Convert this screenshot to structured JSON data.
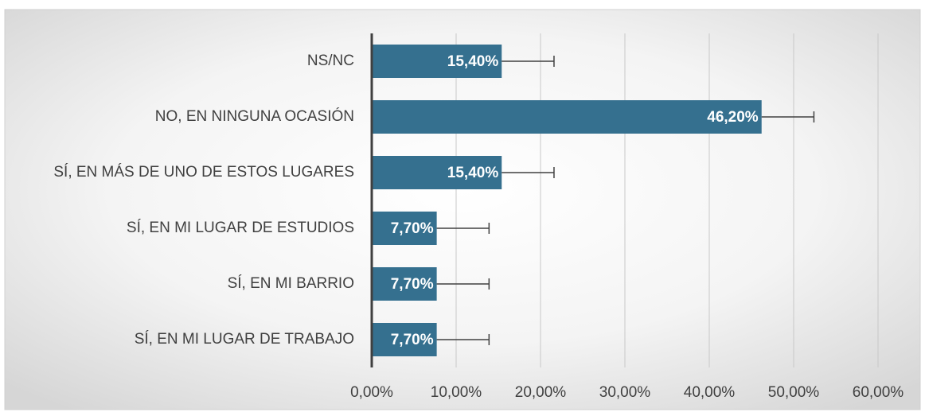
{
  "chart_data": {
    "type": "hbar",
    "categories": [
      "NS/NC",
      "NO, EN NINGUNA OCASIÓN",
      "SÍ, EN MÁS DE UNO DE ESTOS LUGARES",
      "SÍ, EN MI LUGAR DE ESTUDIOS",
      "SÍ, EN MI BARRIO",
      "SÍ, EN MI LUGAR DE TRABAJO"
    ],
    "values": [
      15.4,
      46.2,
      15.4,
      7.7,
      7.7,
      7.7
    ],
    "value_labels": [
      "15,40%",
      "46,20%",
      "15,40%",
      "7,70%",
      "7,70%",
      "7,70%"
    ],
    "errors": [
      6.2,
      6.2,
      6.2,
      6.2,
      6.2,
      6.2
    ],
    "color": "#35708f",
    "xlim": [
      0,
      60
    ],
    "xticks": [
      {
        "value": 0,
        "label": "0,00%"
      },
      {
        "value": 10,
        "label": "10,00%"
      },
      {
        "value": 20,
        "label": "20,00%"
      },
      {
        "value": 30,
        "label": "30,00%"
      },
      {
        "value": 40,
        "label": "40,00%"
      },
      {
        "value": 50,
        "label": "50,00%"
      },
      {
        "value": 60,
        "label": "60,00%"
      }
    ],
    "grid": true
  }
}
